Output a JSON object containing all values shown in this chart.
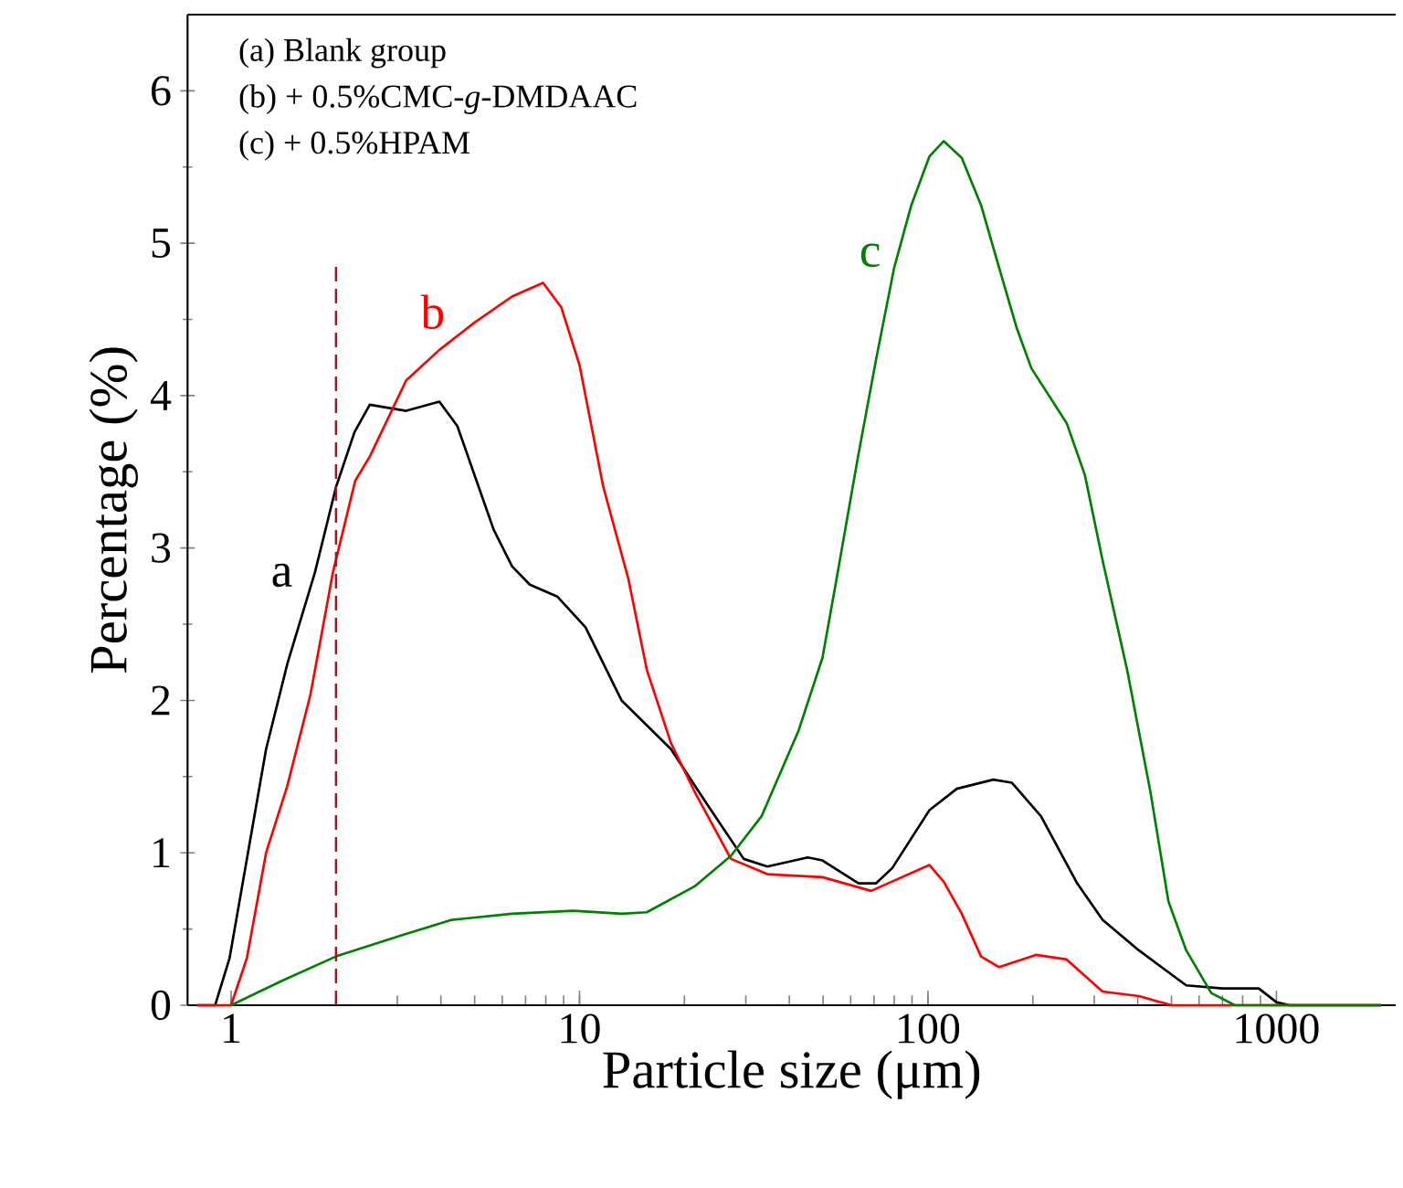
{
  "chart_data": {
    "type": "line",
    "xlabel": "Particle size (μm)",
    "ylabel": "Percentage (%)",
    "log": "x",
    "xlim": [
      0.75,
      2200
    ],
    "xticks": [
      1,
      10,
      100,
      1000
    ],
    "ylim": [
      0,
      6.5
    ],
    "yticks": [
      0,
      1,
      2,
      3,
      4,
      5,
      6
    ],
    "grid": false,
    "marker": "none",
    "line_style": "solid",
    "series": [
      {
        "name": "a",
        "color": "#000000",
        "x": [
          0.8,
          0.9,
          0.99,
          1.26,
          1.45,
          1.74,
          2.0,
          2.26,
          2.5,
          3.18,
          3.96,
          4.46,
          5.67,
          6.4,
          7.2,
          8.65,
          10.4,
          13.2,
          18.3,
          23.2,
          29.6,
          34.6,
          45.2,
          49.8,
          63.2,
          71,
          79,
          101,
          121,
          154,
          174,
          211,
          268,
          317,
          403,
          551,
          700,
          890,
          1000,
          1090,
          2000
        ],
        "values": [
          0,
          0,
          0.31,
          1.68,
          2.24,
          2.84,
          3.4,
          3.76,
          3.94,
          3.9,
          3.96,
          3.8,
          3.12,
          2.88,
          2.76,
          2.68,
          2.48,
          2.0,
          1.68,
          1.32,
          0.96,
          0.91,
          0.97,
          0.95,
          0.8,
          0.8,
          0.9,
          1.28,
          1.42,
          1.48,
          1.46,
          1.24,
          0.8,
          0.56,
          0.36,
          0.13,
          0.11,
          0.11,
          0.02,
          0,
          0
        ]
      },
      {
        "name": "b",
        "color": "#ff0000",
        "x": [
          0.8,
          1.0,
          1.11,
          1.26,
          1.45,
          1.69,
          1.96,
          2.27,
          2.5,
          3.18,
          3.96,
          5.0,
          6.4,
          7.86,
          8.86,
          10.0,
          11.7,
          13.8,
          15.6,
          18.3,
          21.4,
          27.2,
          34.6,
          49.8,
          68.7,
          101,
          111,
          125,
          142,
          160,
          204,
          250,
          317,
          403,
          500,
          2000
        ],
        "values": [
          0,
          0,
          0.31,
          1.0,
          1.44,
          2.04,
          2.84,
          3.44,
          3.6,
          4.1,
          4.3,
          4.48,
          4.65,
          4.74,
          4.58,
          4.2,
          3.4,
          2.8,
          2.2,
          1.72,
          1.4,
          0.96,
          0.86,
          0.84,
          0.75,
          0.92,
          0.81,
          0.6,
          0.32,
          0.25,
          0.33,
          0.3,
          0.09,
          0.06,
          0,
          0
        ]
      },
      {
        "name": "c",
        "color": "#008000",
        "x": [
          1.0,
          1.4,
          2.0,
          3.1,
          4.3,
          6.4,
          9.6,
          13.2,
          15.6,
          21.4,
          27.2,
          33.3,
          42.5,
          49.8,
          54.3,
          63,
          71,
          80,
          89.6,
          101,
          111,
          125,
          142,
          160,
          180,
          198,
          250,
          282,
          317,
          373,
          435,
          490,
          551,
          650,
          760,
          2000
        ],
        "values": [
          0,
          0.16,
          0.32,
          0.46,
          0.56,
          0.6,
          0.62,
          0.6,
          0.61,
          0.78,
          0.98,
          1.24,
          1.8,
          2.28,
          2.76,
          3.6,
          4.24,
          4.84,
          5.25,
          5.57,
          5.67,
          5.56,
          5.25,
          4.84,
          4.44,
          4.18,
          3.82,
          3.48,
          2.92,
          2.2,
          1.4,
          0.68,
          0.36,
          0.08,
          0,
          0
        ]
      }
    ],
    "ref_lines": [
      {
        "axis": "x",
        "value": 2,
        "color": "#a0141e",
        "line_style": "dashed"
      }
    ],
    "annotations": [
      "(a) Blank group",
      "(b) + 0.5%CMC-*g*-DMDAAC",
      "(c) + 0.5%HPAM"
    ]
  }
}
